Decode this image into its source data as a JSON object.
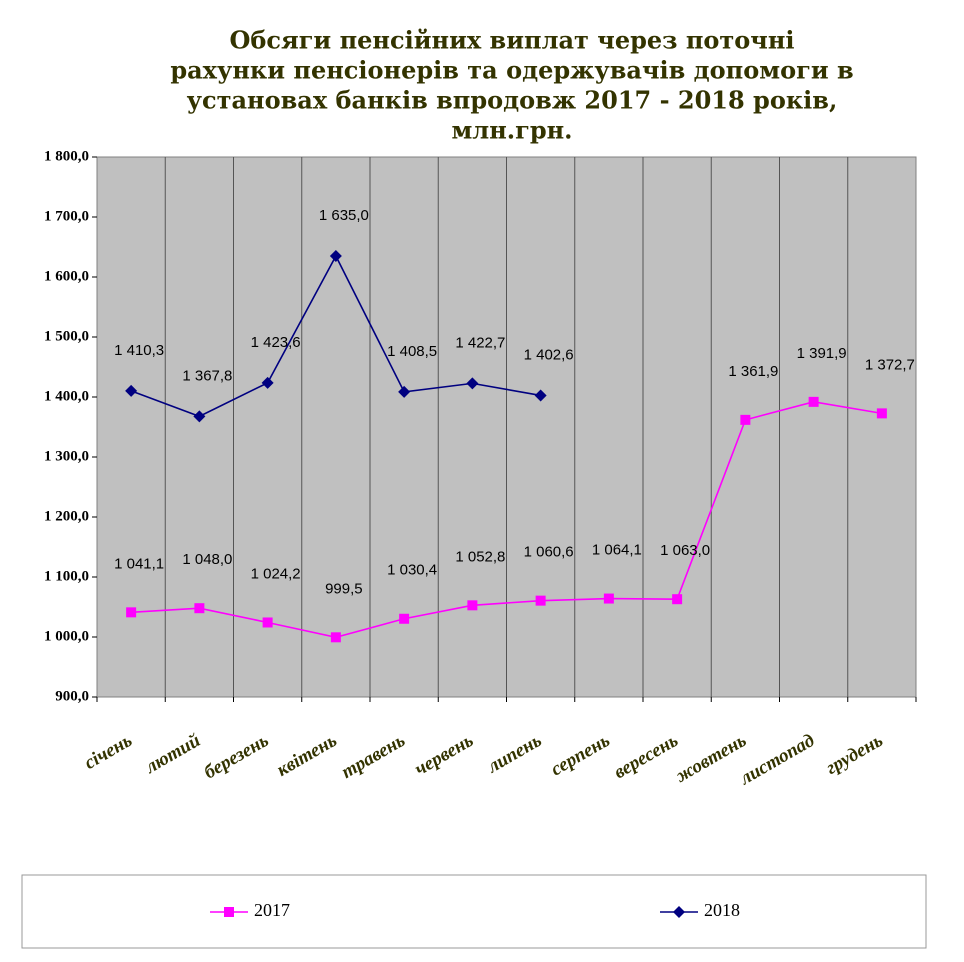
{
  "chart_data": {
    "type": "line",
    "title": [
      "Обсяги пенсійних виплат через поточні",
      "рахунки пенсіонерів та одержувачів допомоги в",
      "установах банків впродовж 2017 - 2018 років,",
      "млн.грн."
    ],
    "categories": [
      "січень",
      "лютий",
      "березень",
      "квітень",
      "травень",
      "червень",
      "липень",
      "серпень",
      "вересень",
      "жовтень",
      "листопад",
      "грудень"
    ],
    "series": [
      {
        "name": "2017",
        "color": "#ff00ff",
        "marker": "square",
        "values": [
          1041.1,
          1048.0,
          1024.2,
          999.5,
          1030.4,
          1052.8,
          1060.6,
          1064.1,
          1063.0,
          1361.9,
          1391.9,
          1372.7
        ],
        "value_labels": [
          "1 041,1",
          "1 048,0",
          "1 024,2",
          "999,5",
          "1 030,4",
          "1 052,8",
          "1 060,6",
          "1 064,1",
          "1 063,0",
          "1 361,9",
          "1 391,9",
          "1 372,7"
        ]
      },
      {
        "name": "2018",
        "color": "#000080",
        "marker": "diamond",
        "values": [
          1410.3,
          1367.8,
          1423.6,
          1635.0,
          1408.5,
          1422.7,
          1402.6,
          null,
          null,
          null,
          null,
          null
        ],
        "value_labels": [
          "1 410,3",
          "1 367,8",
          "1 423,6",
          "1 635,0",
          "1 408,5",
          "1 422,7",
          "1 402,6",
          null,
          null,
          null,
          null,
          null
        ]
      }
    ],
    "ylim": [
      900,
      1800
    ],
    "yticks": [
      {
        "value": 900,
        "label": "900,0"
      },
      {
        "value": 1000,
        "label": "1 000,0"
      },
      {
        "value": 1100,
        "label": "1 100,0"
      },
      {
        "value": 1200,
        "label": "1 200,0"
      },
      {
        "value": 1300,
        "label": "1 300,0"
      },
      {
        "value": 1400,
        "label": "1 400,0"
      },
      {
        "value": 1500,
        "label": "1 500,0"
      },
      {
        "value": 1600,
        "label": "1 600,0"
      },
      {
        "value": 1700,
        "label": "1 700,0"
      },
      {
        "value": 1800,
        "label": "1 800,0"
      }
    ],
    "legend": "bottom"
  }
}
